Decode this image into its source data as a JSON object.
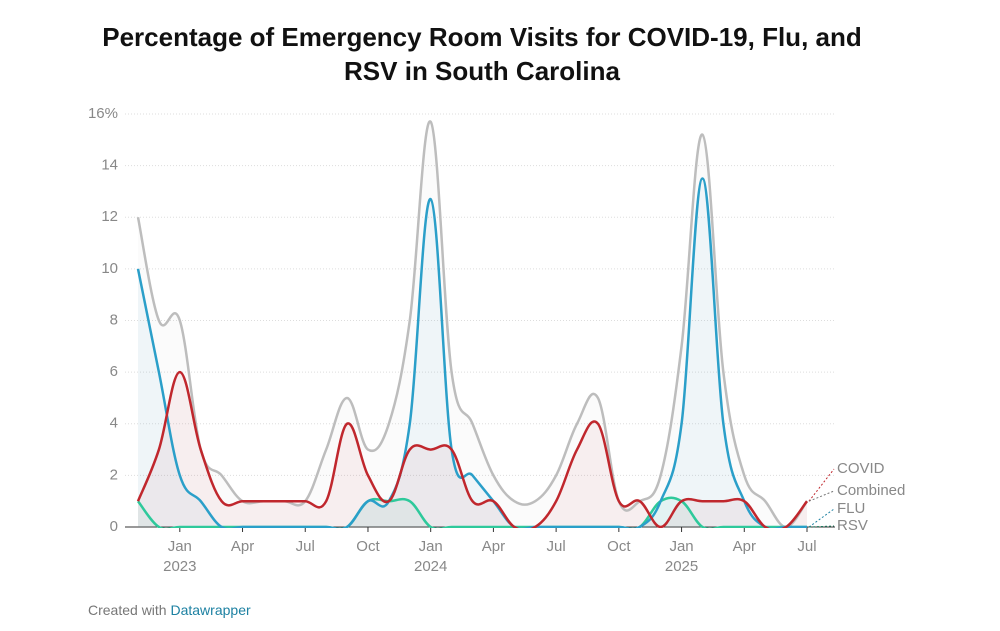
{
  "chart_data": {
    "type": "line",
    "title": "Percentage of Emergency Room Visits for COVID-19, Flu, and RSV in South Carolina",
    "x": [
      "2022-11",
      "2022-12",
      "2023-01",
      "2023-02",
      "2023-03",
      "2023-04",
      "2023-05",
      "2023-06",
      "2023-07",
      "2023-08",
      "2023-09",
      "2023-10",
      "2023-11",
      "2023-12",
      "2024-01",
      "2024-02",
      "2024-03",
      "2024-04",
      "2024-05",
      "2024-06",
      "2024-07",
      "2024-08",
      "2024-09",
      "2024-10",
      "2024-11",
      "2024-12",
      "2025-01",
      "2025-02",
      "2025-03",
      "2025-04",
      "2025-05",
      "2025-06",
      "2025-07"
    ],
    "series": [
      {
        "name": "COVID",
        "color": "#c0272d",
        "label_color": "#c0272d",
        "values": [
          1,
          3,
          6,
          3,
          1,
          1,
          1,
          1,
          1,
          1,
          4,
          2,
          1,
          3,
          3,
          3,
          1,
          1,
          0,
          0,
          1,
          3,
          4,
          1,
          1,
          0,
          1,
          1,
          1,
          1,
          0,
          0,
          1
        ]
      },
      {
        "name": "Combined",
        "color": "#bdbdbd",
        "label_color": "#777777",
        "values": [
          12,
          8,
          8,
          3,
          2,
          1,
          1,
          1,
          1,
          3,
          5,
          3,
          4,
          8,
          15.7,
          6,
          4,
          2,
          1,
          1,
          2,
          4,
          5,
          1,
          1,
          2,
          7,
          15.2,
          6,
          2,
          1,
          0,
          1
        ]
      },
      {
        "name": "FLU",
        "color": "#2b9fc9",
        "label_color": "#1d81a2",
        "values": [
          10,
          6,
          2,
          1,
          0,
          0,
          0,
          0,
          0,
          0,
          0,
          1,
          1,
          4,
          12.7,
          3,
          2,
          1,
          0,
          0,
          0,
          0,
          0,
          0,
          0,
          1,
          4,
          13.5,
          4,
          1,
          0,
          0,
          0
        ]
      },
      {
        "name": "RSV",
        "color": "#2ec99b",
        "label_color": "#1a7a5c",
        "values": [
          1,
          0,
          0,
          0,
          0,
          0,
          0,
          0,
          0,
          0,
          0,
          1,
          1,
          1,
          0,
          0,
          0,
          0,
          0,
          0,
          0,
          0,
          0,
          0,
          0,
          1,
          1,
          0,
          0,
          0,
          0,
          0,
          0
        ]
      }
    ],
    "xlim": [
      "2022-11",
      "2025-07"
    ],
    "xticks": [
      {
        "value": "2023-01",
        "label": "Jan"
      },
      {
        "value": "2023-04",
        "label": "Apr"
      },
      {
        "value": "2023-07",
        "label": "Jul"
      },
      {
        "value": "2023-10",
        "label": "Oct"
      },
      {
        "value": "2024-01",
        "label": "Jan"
      },
      {
        "value": "2024-04",
        "label": "Apr"
      },
      {
        "value": "2024-07",
        "label": "Jul"
      },
      {
        "value": "2024-10",
        "label": "Oct"
      },
      {
        "value": "2025-01",
        "label": "Jan"
      },
      {
        "value": "2025-04",
        "label": "Apr"
      },
      {
        "value": "2025-07",
        "label": "Jul"
      }
    ],
    "xtick_years": [
      {
        "value": "2023-01",
        "label": "2023"
      },
      {
        "value": "2024-01",
        "label": "2024"
      },
      {
        "value": "2025-01",
        "label": "2025"
      }
    ],
    "ylim": [
      0,
      16
    ],
    "yticks": [
      0,
      2,
      4,
      6,
      8,
      10,
      12,
      14,
      {
        "value": 16,
        "label": "16%"
      }
    ],
    "grid": true,
    "footer": "Created with",
    "footer_link": "Datawrapper"
  }
}
